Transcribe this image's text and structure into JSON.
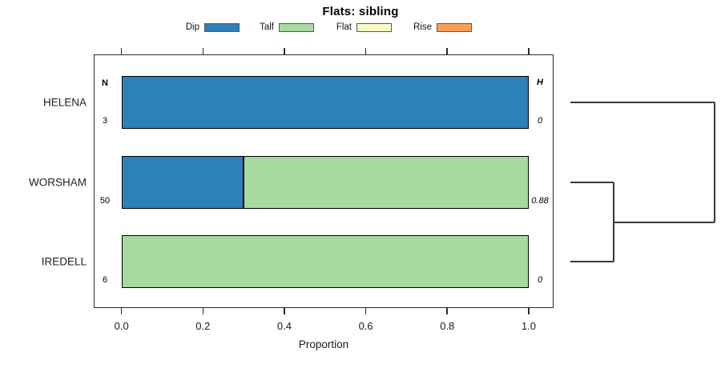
{
  "title": "Flats: sibling",
  "chart_data": {
    "type": "bar",
    "subtype": "horizontal-stacked-proportion",
    "title": "Flats: sibling",
    "xlabel": "Proportion",
    "xlim": [
      0,
      1
    ],
    "x_tick_labels": [
      "0.0",
      "0.2",
      "0.4",
      "0.6",
      "0.8",
      "1.0"
    ],
    "grid": false,
    "legend_position": "top-center",
    "legend": [
      {
        "label": "Dip",
        "color": "#2E80B8"
      },
      {
        "label": "Talf",
        "color": "#A7D9A0"
      },
      {
        "label": "Flat",
        "color": "#FAFAC8"
      },
      {
        "label": "Rise",
        "color": "#F8A056"
      }
    ],
    "inner_column_headers": {
      "left": "N",
      "right": "H"
    },
    "rows": [
      {
        "category": "HELENA",
        "n": "3",
        "h": "0",
        "segments": [
          {
            "series": "Dip",
            "value": 1.0
          }
        ]
      },
      {
        "category": "WORSHAM",
        "n": "50",
        "h": "0.88",
        "segments": [
          {
            "series": "Dip",
            "value": 0.3
          },
          {
            "series": "Talf",
            "value": 0.7
          }
        ]
      },
      {
        "category": "IREDELL",
        "n": "6",
        "h": "0",
        "segments": [
          {
            "series": "Talf",
            "value": 1.0
          }
        ]
      }
    ],
    "dendrogram": {
      "side": "right",
      "leaf_order": [
        "HELENA",
        "WORSHAM",
        "IREDELL"
      ],
      "first_merge": [
        "WORSHAM",
        "IREDELL"
      ],
      "root_merge": [
        "HELENA",
        "WORSHAM+IREDELL"
      ]
    }
  }
}
